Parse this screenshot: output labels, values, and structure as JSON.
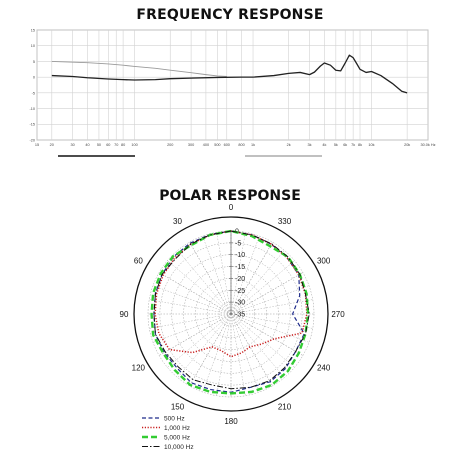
{
  "chart_data": [
    {
      "type": "line",
      "title": "FREQUENCY RESPONSE",
      "xscale": "log",
      "xlim": [
        15,
        30000
      ],
      "ylim": [
        -20,
        15
      ],
      "x_ticks": [
        15,
        20,
        30,
        40,
        50,
        60,
        70,
        80,
        100,
        200,
        300,
        400,
        500,
        600,
        800,
        1000,
        2000,
        3000,
        4000,
        5000,
        6000,
        7000,
        8000,
        10000,
        20000,
        30000
      ],
      "x_tick_labels": [
        "15",
        "20",
        "30",
        "40",
        "50",
        "60",
        "70",
        "80",
        "100",
        "200",
        "300",
        "400",
        "500",
        "600",
        "800",
        "1k",
        "2k",
        "3k",
        "4k",
        "5k",
        "6k",
        "7k",
        "8k",
        "10k",
        "20k",
        "30.0k Hz"
      ],
      "y_ticks": [
        15,
        10,
        5,
        0,
        -5,
        -10,
        -15,
        -20
      ],
      "y_tick_labels": [
        "15",
        "10",
        "5",
        "0",
        "-5",
        "-10",
        "-15",
        "-20"
      ],
      "grid": true,
      "series": [
        {
          "color": "#9a9a9a",
          "x": [
            20,
            40,
            60,
            80,
            100,
            150,
            200,
            300,
            400,
            500,
            600
          ],
          "y": [
            5.0,
            4.6,
            4.2,
            3.8,
            3.4,
            2.8,
            2.2,
            1.4,
            0.8,
            0.4,
            0.2
          ]
        },
        {
          "color": "#222222",
          "x": [
            20,
            30,
            40,
            60,
            80,
            100,
            150,
            200,
            300,
            500,
            800,
            1000,
            1500,
            2000,
            2500,
            3000,
            3300,
            3700,
            4000,
            4500,
            5000,
            5500,
            6000,
            6500,
            7000,
            7500,
            8000,
            9000,
            10000,
            12000,
            15000,
            18000,
            20000
          ],
          "y": [
            0.5,
            0.2,
            -0.2,
            -0.6,
            -0.8,
            -0.9,
            -0.8,
            -0.5,
            -0.3,
            -0.1,
            0.0,
            0.0,
            0.5,
            1.2,
            1.5,
            0.8,
            1.6,
            3.5,
            4.5,
            3.8,
            2.2,
            2.0,
            4.5,
            7.0,
            6.2,
            4.3,
            2.5,
            1.5,
            1.8,
            0.5,
            -2.0,
            -4.5,
            -5.0
          ]
        }
      ]
    },
    {
      "type": "polar",
      "title": "POLAR RESPONSE",
      "angle_labels": [
        "0",
        "30",
        "60",
        "90",
        "120",
        "150",
        "180",
        "210",
        "240",
        "270",
        "300",
        "330"
      ],
      "angle_direction": "counterclockwise from top",
      "radial_ticks": [
        0,
        -5,
        -10,
        -15,
        -20,
        -25,
        -30,
        -35
      ],
      "radial_tick_labels": [
        "0",
        "-5",
        "-10",
        "-15",
        "-20",
        "-25",
        "-30",
        "-35"
      ],
      "rlim": [
        -35,
        0
      ],
      "legend_position": "bottom-left",
      "series": [
        {
          "name": "500 Hz",
          "color": "#1e2a8a",
          "dash": "dash",
          "angles": [
            0,
            15,
            30,
            45,
            60,
            75,
            90,
            105,
            120,
            135,
            150,
            165,
            180,
            195,
            210,
            225,
            240,
            255,
            270,
            285,
            300,
            315,
            330,
            345
          ],
          "values": [
            0,
            -0.3,
            -0.5,
            -0.8,
            -1.5,
            -2,
            -2.5,
            -2,
            -2.5,
            -2.8,
            -1.5,
            -2,
            -2,
            -3,
            -2,
            -2.5,
            -3.5,
            -3,
            -9,
            -5,
            -2,
            -1.5,
            -1,
            -0.5
          ]
        },
        {
          "name": "1,000 Hz",
          "color": "#c81e1e",
          "dash": "dot",
          "angles": [
            0,
            15,
            30,
            45,
            60,
            75,
            90,
            105,
            120,
            135,
            150,
            165,
            180,
            195,
            210,
            225,
            240,
            255,
            270,
            285,
            300,
            315,
            330,
            345
          ],
          "values": [
            0,
            -0.5,
            -1,
            -1.5,
            -2,
            -2.5,
            -3,
            -3.5,
            -5,
            -12,
            -19,
            -19,
            -17,
            -18,
            -19,
            -17,
            -14,
            -4,
            -3,
            -2.5,
            -2,
            -1.5,
            -1,
            -0.5
          ]
        },
        {
          "name": "5,000 Hz",
          "color": "#33cc33",
          "dash": "longdash",
          "angles": [
            0,
            15,
            30,
            45,
            60,
            75,
            90,
            105,
            120,
            135,
            150,
            165,
            180,
            195,
            210,
            225,
            240,
            255,
            270,
            285,
            300,
            315,
            330,
            345
          ],
          "values": [
            0,
            -0.5,
            -1.5,
            -0.5,
            -0.8,
            -1,
            -1.5,
            -1,
            -2,
            -1.5,
            -0.5,
            -1,
            -1.5,
            -1,
            -0.5,
            -1,
            -2,
            -2.5,
            -2.5,
            -2,
            -1.5,
            -1,
            -2,
            -1
          ]
        },
        {
          "name": "10,000 Hz",
          "color": "#111111",
          "dash": "dashdot",
          "angles": [
            0,
            15,
            30,
            45,
            60,
            75,
            90,
            105,
            120,
            135,
            150,
            165,
            180,
            195,
            210,
            225,
            240,
            255,
            270,
            285,
            300,
            315,
            330,
            345
          ],
          "values": [
            0,
            -0.5,
            -1,
            -2,
            -1.5,
            -2,
            -2.5,
            -2,
            -3,
            -3.5,
            -3,
            -4,
            -3.5,
            -3,
            -2.5,
            -3,
            -3.5,
            -2.5,
            -2,
            -2.5,
            -1.5,
            -1,
            -0.8,
            -0.5
          ]
        }
      ]
    }
  ]
}
